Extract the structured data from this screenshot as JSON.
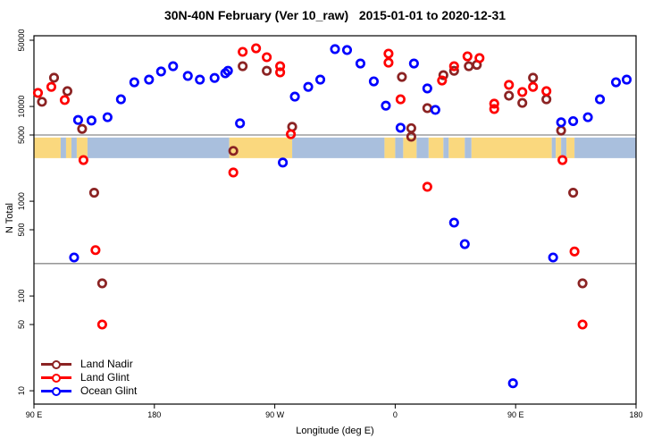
{
  "title": "30N-40N February (Ver 10_raw)   2015-01-01 to 2020-12-31",
  "legend": {
    "items": [
      {
        "label": "Land Nadir",
        "color": "#8B2323"
      },
      {
        "label": "Land Glint",
        "color": "#FF0000"
      },
      {
        "label": "Ocean Glint",
        "color": "#0000FF"
      }
    ]
  },
  "axes": {
    "x": {
      "label": "Longitude (deg E)"
    },
    "y": {
      "label": "N Total"
    }
  },
  "chart_data": {
    "type": "scatter",
    "title": "30N-40N February (Ver 10_raw)   2015-01-01 to 2020-12-31",
    "xlabel": "Longitude (deg E)",
    "ylabel": "N Total",
    "x_axis": {
      "note": "degrees east of 90E along axis, 0..450",
      "range_deg": [
        0,
        450
      ],
      "ticks": [
        {
          "deg": 0,
          "label": "90 E"
        },
        {
          "deg": 90,
          "label": "180"
        },
        {
          "deg": 180,
          "label": "90 W"
        },
        {
          "deg": 270,
          "label": "0"
        },
        {
          "deg": 360,
          "label": "90 E"
        },
        {
          "deg": 450,
          "label": "180"
        }
      ]
    },
    "y_axis": {
      "scale": "log10",
      "range": [
        10,
        50000
      ],
      "ticks": [
        50000,
        10000,
        5000,
        1000,
        500,
        100,
        50,
        10
      ]
    },
    "reference_lines": {
      "values": [
        5000,
        220
      ],
      "color": "#8a8a8a"
    },
    "map_band": {
      "n_top": 4700,
      "n_bottom": 2850,
      "land_color": "#FAD87E",
      "sea_color": "#A9BFDD",
      "segments": [
        {
          "from": 0,
          "to": 20,
          "type": "land"
        },
        {
          "from": 20,
          "to": 24,
          "type": "sea"
        },
        {
          "from": 24,
          "to": 28,
          "type": "land"
        },
        {
          "from": 28,
          "to": 32,
          "type": "sea"
        },
        {
          "from": 32,
          "to": 40,
          "type": "land"
        },
        {
          "from": 40,
          "to": 146,
          "type": "sea"
        },
        {
          "from": 146,
          "to": 193,
          "type": "land"
        },
        {
          "from": 193,
          "to": 262,
          "type": "sea"
        },
        {
          "from": 262,
          "to": 270,
          "type": "land"
        },
        {
          "from": 270,
          "to": 276,
          "type": "sea"
        },
        {
          "from": 276,
          "to": 286,
          "type": "land"
        },
        {
          "from": 286,
          "to": 295,
          "type": "sea"
        },
        {
          "from": 295,
          "to": 306,
          "type": "land"
        },
        {
          "from": 306,
          "to": 310,
          "type": "sea"
        },
        {
          "from": 310,
          "to": 322,
          "type": "land"
        },
        {
          "from": 322,
          "to": 327,
          "type": "sea"
        },
        {
          "from": 327,
          "to": 387,
          "type": "land"
        },
        {
          "from": 387,
          "to": 390,
          "type": "sea"
        },
        {
          "from": 390,
          "to": 394,
          "type": "land"
        },
        {
          "from": 394,
          "to": 398,
          "type": "sea"
        },
        {
          "from": 398,
          "to": 404,
          "type": "land"
        },
        {
          "from": 404,
          "to": 450,
          "type": "sea"
        }
      ]
    },
    "series": [
      {
        "name": "Land Nadir",
        "color": "#8B2323",
        "points": [
          [
            6,
            11200
          ],
          [
            15,
            20100
          ],
          [
            25,
            14500
          ],
          [
            36,
            5800
          ],
          [
            45,
            1230
          ],
          [
            51,
            136
          ],
          [
            149,
            3400
          ],
          [
            156,
            26600
          ],
          [
            174,
            23800
          ],
          [
            193,
            6100
          ],
          [
            275,
            20500
          ],
          [
            282,
            5900
          ],
          [
            282,
            4790
          ],
          [
            294,
            9600
          ],
          [
            306,
            21400
          ],
          [
            314,
            23800
          ],
          [
            325,
            26600
          ],
          [
            331,
            27500
          ],
          [
            355,
            13000
          ],
          [
            365,
            10900
          ],
          [
            373,
            20100
          ],
          [
            383,
            11900
          ],
          [
            394,
            5570
          ],
          [
            403,
            1230
          ],
          [
            410,
            136
          ]
        ]
      },
      {
        "name": "Land Glint",
        "color": "#FF0000",
        "points": [
          [
            3,
            13900
          ],
          [
            13,
            16100
          ],
          [
            23,
            11700
          ],
          [
            37,
            2720
          ],
          [
            46,
            305
          ],
          [
            51,
            50
          ],
          [
            149,
            2010
          ],
          [
            156,
            37700
          ],
          [
            166,
            41100
          ],
          [
            174,
            33100
          ],
          [
            184,
            26600
          ],
          [
            184,
            22900
          ],
          [
            192,
            5100
          ],
          [
            265,
            36100
          ],
          [
            265,
            29000
          ],
          [
            274,
            11900
          ],
          [
            294,
            1420
          ],
          [
            305,
            18800
          ],
          [
            314,
            26600
          ],
          [
            324,
            33800
          ],
          [
            333,
            32400
          ],
          [
            344,
            10700
          ],
          [
            344,
            9400
          ],
          [
            355,
            16900
          ],
          [
            365,
            14200
          ],
          [
            373,
            16100
          ],
          [
            383,
            14500
          ],
          [
            395,
            2720
          ],
          [
            404,
            295
          ],
          [
            410,
            50
          ]
        ]
      },
      {
        "name": "Ocean Glint",
        "color": "#0000FF",
        "points": [
          [
            30,
            255
          ],
          [
            33,
            7200
          ],
          [
            43,
            7100
          ],
          [
            55,
            7700
          ],
          [
            65,
            11900
          ],
          [
            75,
            18000
          ],
          [
            86,
            19200
          ],
          [
            95,
            23400
          ],
          [
            104,
            26600
          ],
          [
            115,
            21000
          ],
          [
            124,
            19200
          ],
          [
            135,
            20000
          ],
          [
            143,
            22400
          ],
          [
            145,
            23800
          ],
          [
            154,
            6640
          ],
          [
            186,
            2560
          ],
          [
            195,
            12700
          ],
          [
            205,
            16100
          ],
          [
            214,
            19200
          ],
          [
            225,
            40300
          ],
          [
            234,
            39400
          ],
          [
            244,
            28400
          ],
          [
            254,
            18400
          ],
          [
            263,
            10200
          ],
          [
            274,
            5960
          ],
          [
            284,
            28400
          ],
          [
            294,
            15500
          ],
          [
            300,
            9200
          ],
          [
            314,
            595
          ],
          [
            322,
            353
          ],
          [
            358,
            12
          ],
          [
            388,
            255
          ],
          [
            394,
            6800
          ],
          [
            403,
            7000
          ],
          [
            414,
            7700
          ],
          [
            423,
            11900
          ],
          [
            435,
            18000
          ],
          [
            443,
            19200
          ]
        ]
      }
    ]
  }
}
